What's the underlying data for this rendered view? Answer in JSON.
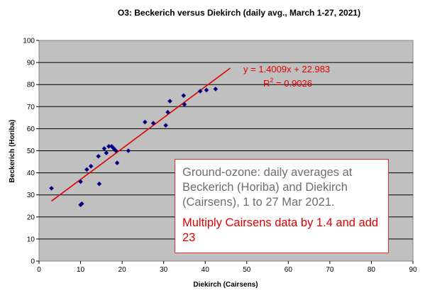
{
  "chart_data": {
    "type": "scatter",
    "title": "O3: Beckerich versus Diekirch (daily avg., March 1-27, 2021)",
    "xlabel": "Diekirch (Cairsens)",
    "ylabel": "Beckerich (Horiba)",
    "xlim": [
      0,
      90
    ],
    "ylim": [
      0,
      100
    ],
    "xticks": [
      "0",
      "10",
      "20",
      "30",
      "40",
      "50",
      "60",
      "70",
      "80",
      "90"
    ],
    "yticks": [
      "0",
      "10",
      "20",
      "30",
      "40",
      "50",
      "60",
      "70",
      "80",
      "90",
      "100"
    ],
    "grid": true,
    "plot_background": "#c0c0c0",
    "point_color": "#000080",
    "trend_color": "#e00000",
    "points": [
      {
        "x": 3,
        "y": 33
      },
      {
        "x": 10,
        "y": 36
      },
      {
        "x": 10,
        "y": 25.5
      },
      {
        "x": 10.3,
        "y": 26
      },
      {
        "x": 11.5,
        "y": 41.5
      },
      {
        "x": 12.5,
        "y": 43
      },
      {
        "x": 14.3,
        "y": 47.5
      },
      {
        "x": 14.5,
        "y": 35
      },
      {
        "x": 15.7,
        "y": 51
      },
      {
        "x": 16.2,
        "y": 49
      },
      {
        "x": 16.8,
        "y": 52
      },
      {
        "x": 17.5,
        "y": 52
      },
      {
        "x": 18,
        "y": 51
      },
      {
        "x": 18.5,
        "y": 50
      },
      {
        "x": 18.8,
        "y": 44.5
      },
      {
        "x": 21.5,
        "y": 50
      },
      {
        "x": 25.5,
        "y": 63
      },
      {
        "x": 27.5,
        "y": 62.5
      },
      {
        "x": 30.5,
        "y": 61.5
      },
      {
        "x": 31,
        "y": 67.5
      },
      {
        "x": 31.5,
        "y": 72.5
      },
      {
        "x": 34.8,
        "y": 75
      },
      {
        "x": 35,
        "y": 71
      },
      {
        "x": 38.8,
        "y": 77
      },
      {
        "x": 40.3,
        "y": 77.5
      },
      {
        "x": 42.5,
        "y": 78
      }
    ],
    "trendline": {
      "slope": 1.4009,
      "intercept": 22.983,
      "x_start": 3,
      "x_end": 46
    },
    "equation": "y = 1.4009x + 22.983",
    "r2_label": "R",
    "r2_sup": "2",
    "r2_value": " = 0.9026"
  },
  "infobox": {
    "description": "Ground-ozone: daily averages at Beckerich (Horiba) and Diekirch (Cairsens), 1 to 27 Mar 2021.",
    "instruction": "Multiply Cairsens data by 1.4 and add 23"
  }
}
